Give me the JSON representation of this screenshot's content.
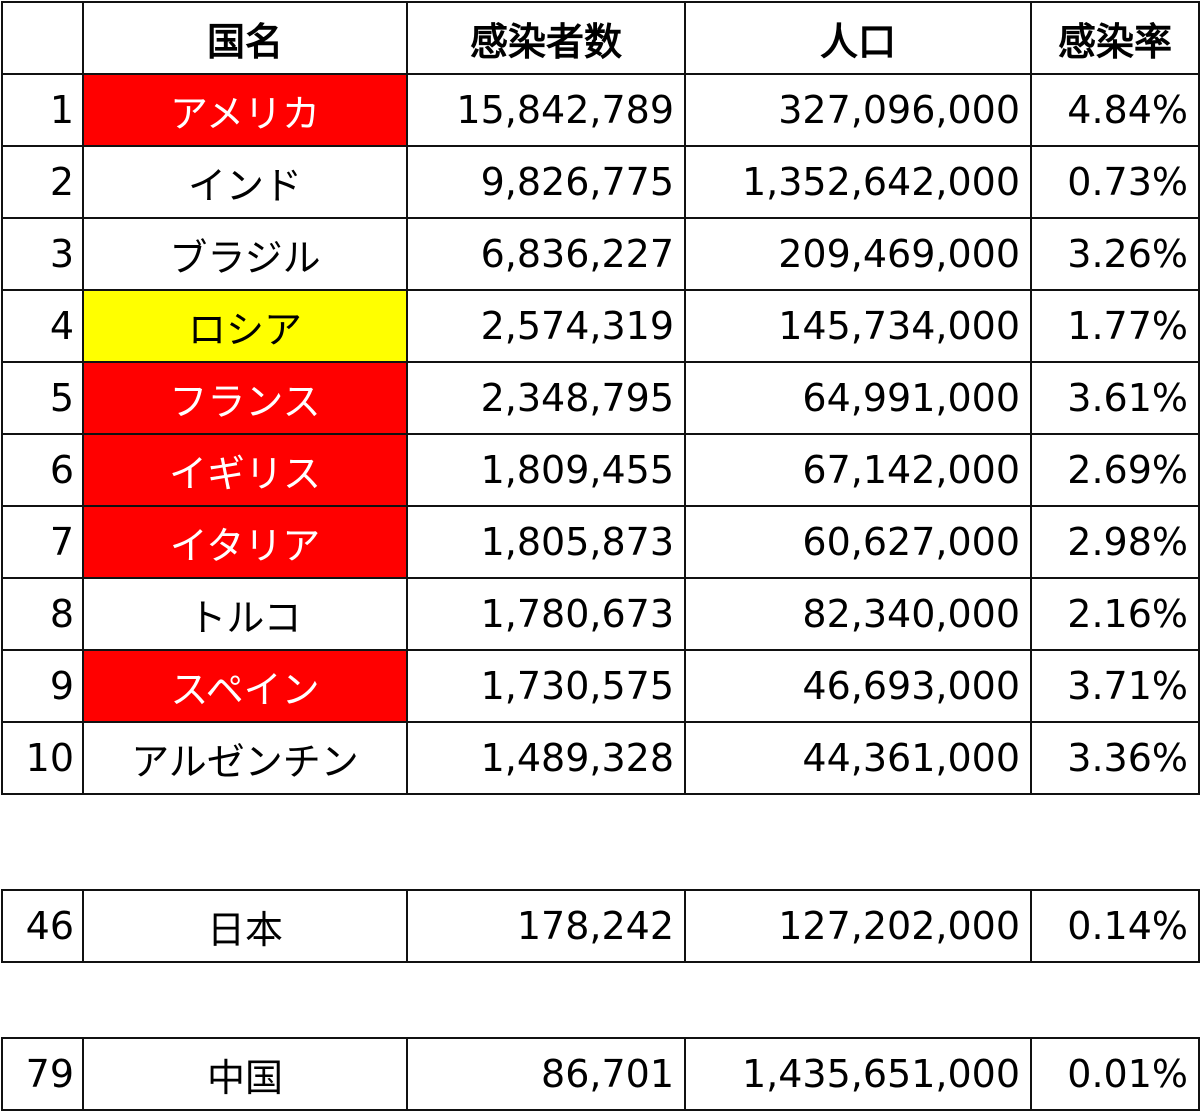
{
  "headers": {
    "rank": "",
    "country": "国名",
    "cases": "感染者数",
    "population": "人口",
    "rate": "感染率"
  },
  "highlight_colors": {
    "red": "#ff0000",
    "yellow": "#ffff00"
  },
  "rows": [
    {
      "rank": "1",
      "country": "アメリカ",
      "cases": "15,842,789",
      "population": "327,096,000",
      "rate": "4.84%",
      "highlight": "red"
    },
    {
      "rank": "2",
      "country": "インド",
      "cases": "9,826,775",
      "population": "1,352,642,000",
      "rate": "0.73%",
      "highlight": ""
    },
    {
      "rank": "3",
      "country": "ブラジル",
      "cases": "6,836,227",
      "population": "209,469,000",
      "rate": "3.26%",
      "highlight": ""
    },
    {
      "rank": "4",
      "country": "ロシア",
      "cases": "2,574,319",
      "population": "145,734,000",
      "rate": "1.77%",
      "highlight": "yellow"
    },
    {
      "rank": "5",
      "country": "フランス",
      "cases": "2,348,795",
      "population": "64,991,000",
      "rate": "3.61%",
      "highlight": "red"
    },
    {
      "rank": "6",
      "country": "イギリス",
      "cases": "1,809,455",
      "population": "67,142,000",
      "rate": "2.69%",
      "highlight": "red"
    },
    {
      "rank": "7",
      "country": "イタリア",
      "cases": "1,805,873",
      "population": "60,627,000",
      "rate": "2.98%",
      "highlight": "red"
    },
    {
      "rank": "8",
      "country": "トルコ",
      "cases": "1,780,673",
      "population": "82,340,000",
      "rate": "2.16%",
      "highlight": ""
    },
    {
      "rank": "9",
      "country": "スペイン",
      "cases": "1,730,575",
      "population": "46,693,000",
      "rate": "3.71%",
      "highlight": "red"
    },
    {
      "rank": "10",
      "country": "アルゼンチン",
      "cases": "1,489,328",
      "population": "44,361,000",
      "rate": "3.36%",
      "highlight": ""
    }
  ],
  "japan": {
    "rank": "46",
    "country": "日本",
    "cases": "178,242",
    "population": "127,202,000",
    "rate": "0.14%"
  },
  "china": {
    "rank": "79",
    "country": "中国",
    "cases": "86,701",
    "population": "1,435,651,000",
    "rate": "0.01%"
  }
}
